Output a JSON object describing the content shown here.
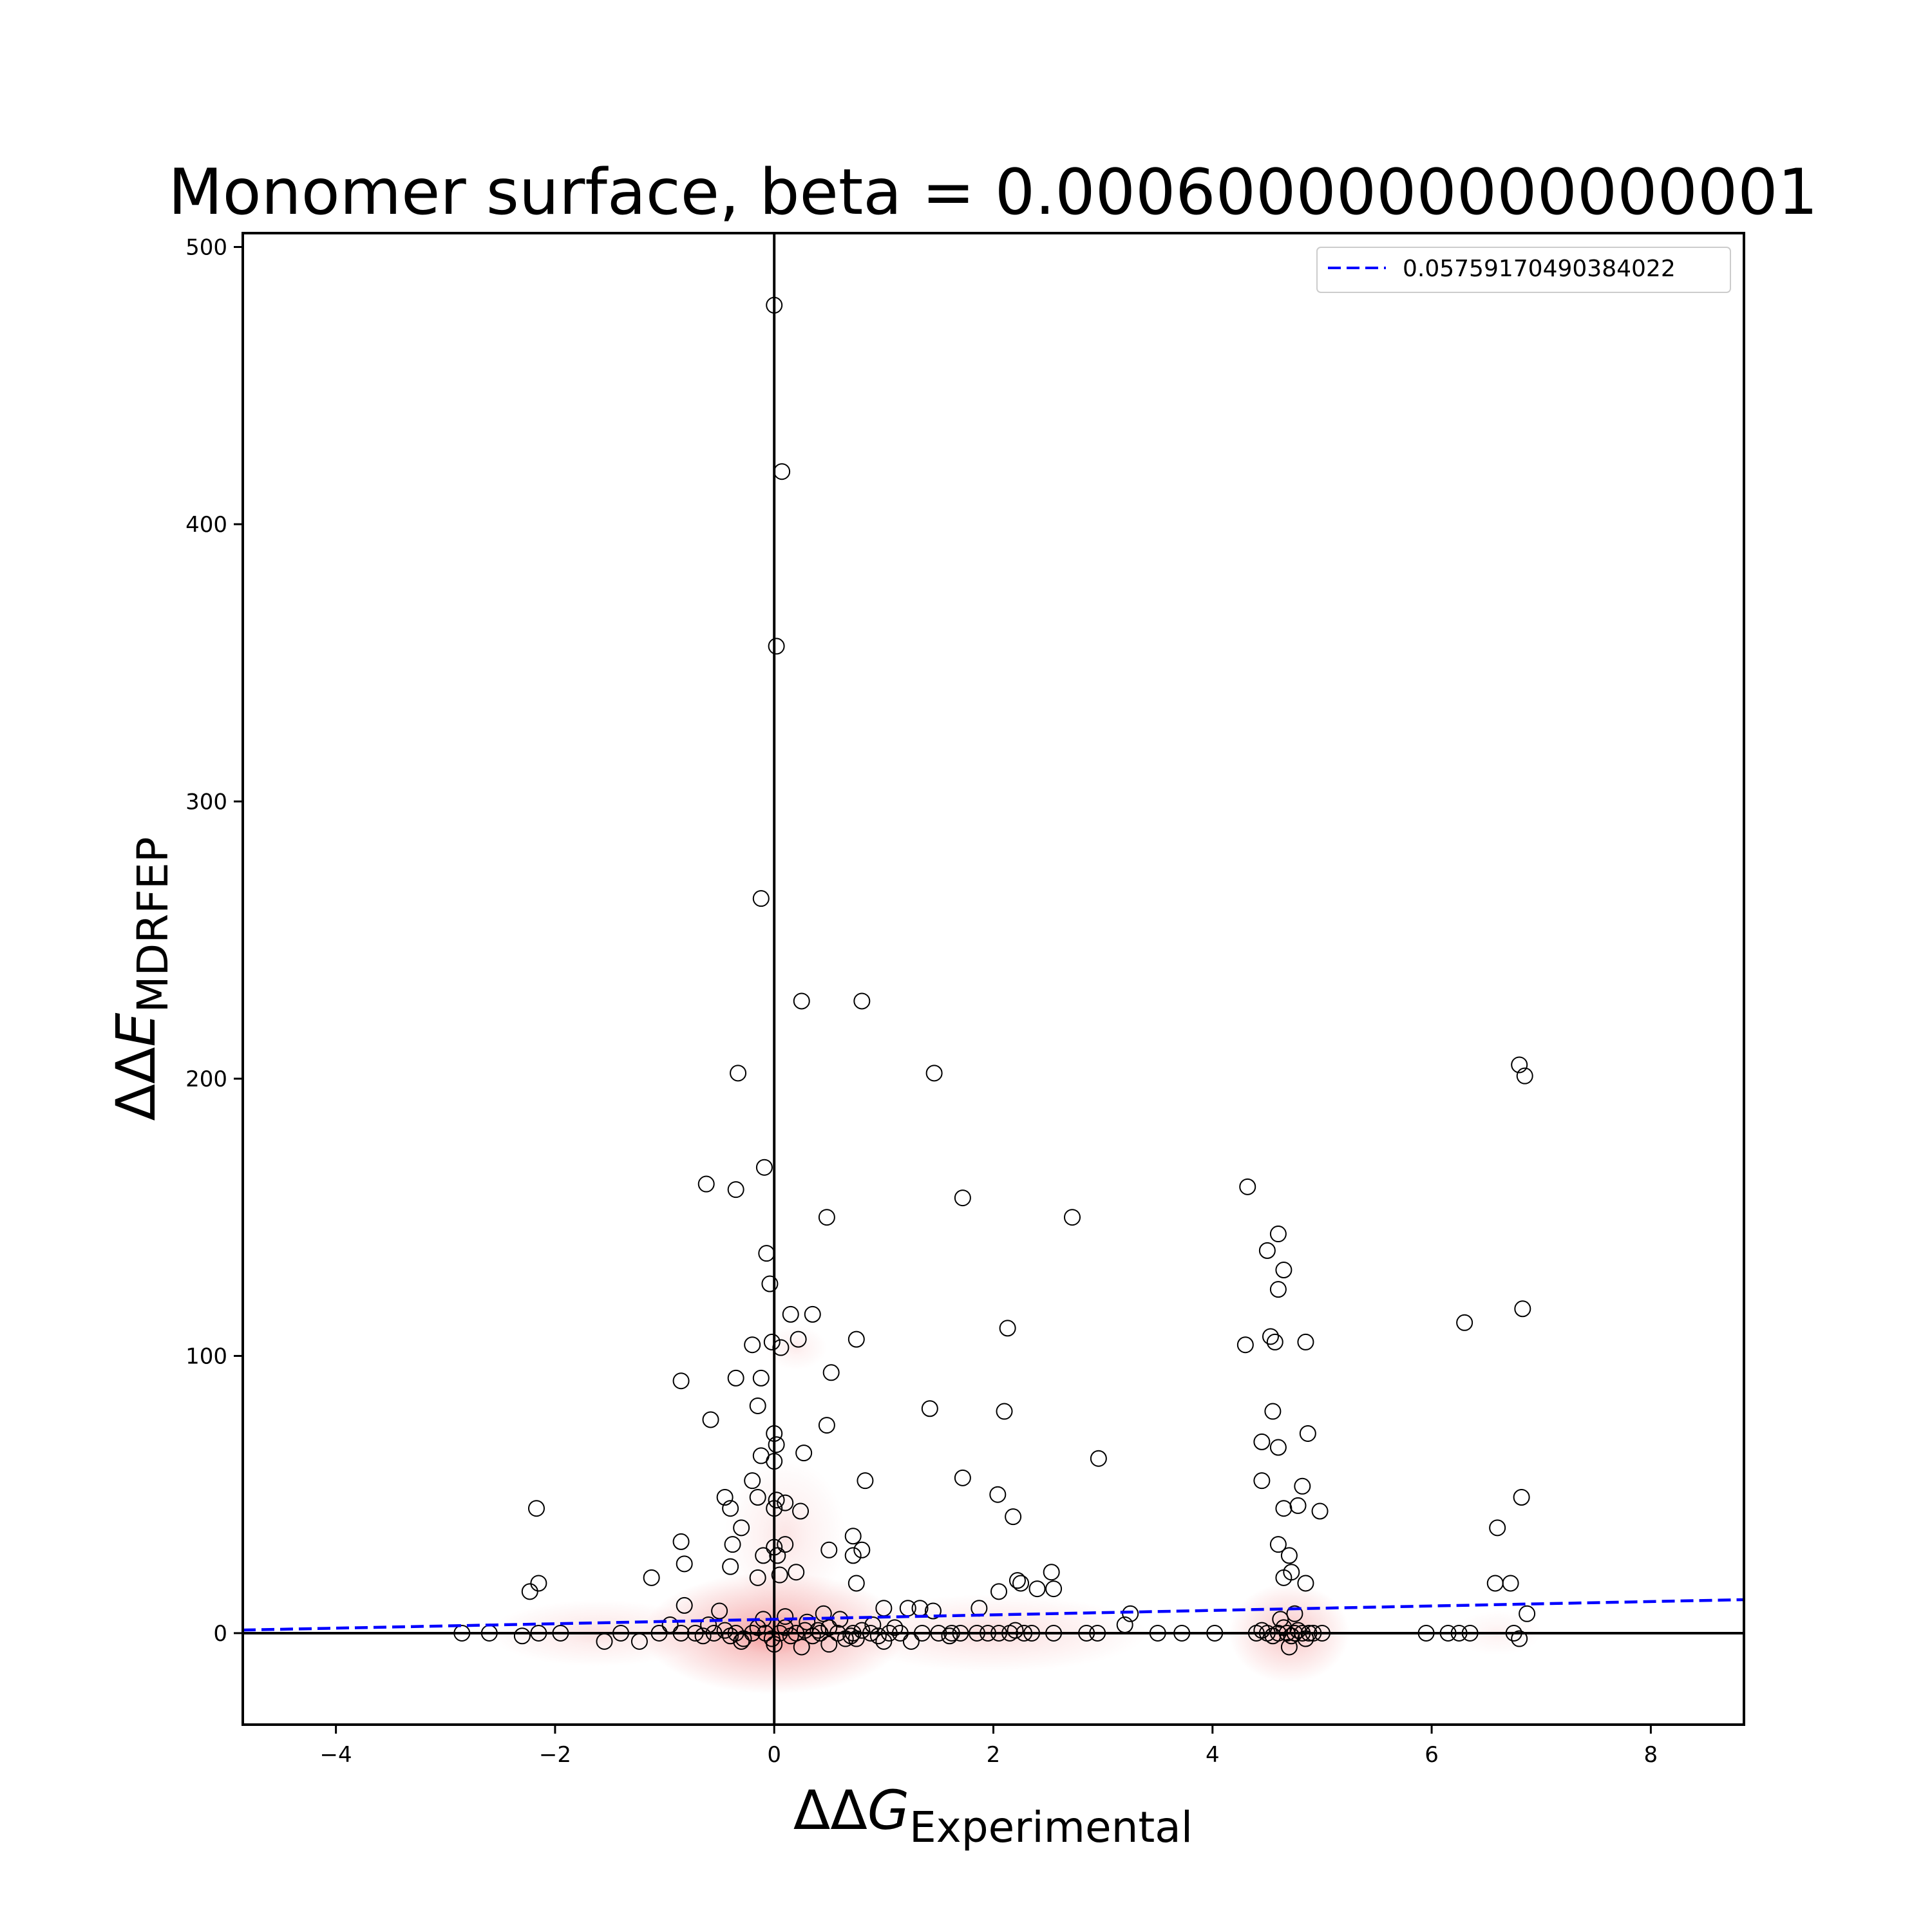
{
  "chart_data": {
    "type": "scatter",
    "title": "Monomer surface, beta = 0.0006000000000000001",
    "xlabel": {
      "main": "ΔΔ",
      "var": "G",
      "sub": "Experimental"
    },
    "ylabel": {
      "main": "ΔΔ",
      "var": "E",
      "sub": "MDRFEP"
    },
    "xlim": [
      -4.85,
      8.85
    ],
    "ylim": [
      -33,
      505
    ],
    "xticks": [
      -4,
      -2,
      0,
      2,
      4,
      6,
      8
    ],
    "xtick_labels": [
      "−4",
      "−2",
      "0",
      "2",
      "4",
      "6",
      "8"
    ],
    "yticks": [
      0,
      100,
      200,
      300,
      400,
      500
    ],
    "ytick_labels": [
      "0",
      "100",
      "200",
      "300",
      "400",
      "500"
    ],
    "reference_lines": {
      "x": 0,
      "y": 0
    },
    "legend": {
      "placement": "top-right",
      "entries": [
        {
          "label": "0.05759170490384022",
          "style": "dashed",
          "color": "#0000ff"
        }
      ]
    },
    "fit_line": {
      "slope": 0.8,
      "intercept": 5.0,
      "color": "#0000ff"
    },
    "density_color": "#f08080",
    "density_blobs": [
      {
        "cx": 0.0,
        "cy": 0,
        "rx": 1.2,
        "ry": 22,
        "w": 1.0
      },
      {
        "cx": 4.7,
        "cy": 0,
        "rx": 0.55,
        "ry": 18,
        "w": 0.65
      },
      {
        "cx": 2.0,
        "cy": 0,
        "rx": 1.4,
        "ry": 14,
        "w": 0.35
      },
      {
        "cx": -1.6,
        "cy": 0,
        "rx": 1.0,
        "ry": 12,
        "w": 0.3
      },
      {
        "cx": 0.1,
        "cy": 35,
        "rx": 0.55,
        "ry": 28,
        "w": 0.25
      },
      {
        "cx": 0.2,
        "cy": 103,
        "rx": 0.28,
        "ry": 8,
        "w": 0.2
      },
      {
        "cx": 6.6,
        "cy": 0,
        "rx": 0.4,
        "ry": 8,
        "w": 0.15
      }
    ],
    "series": [
      {
        "values": [
          [
            0.0,
            479
          ],
          [
            0.07,
            419
          ],
          [
            0.02,
            356
          ],
          [
            -0.12,
            265
          ],
          [
            0.25,
            228
          ],
          [
            0.8,
            228
          ],
          [
            -0.33,
            202
          ],
          [
            1.46,
            202
          ],
          [
            6.8,
            205
          ],
          [
            6.85,
            201
          ],
          [
            -0.09,
            168
          ],
          [
            -0.62,
            162
          ],
          [
            -0.35,
            160
          ],
          [
            1.72,
            157
          ],
          [
            4.32,
            161
          ],
          [
            2.72,
            150
          ],
          [
            0.48,
            150
          ],
          [
            4.6,
            144
          ],
          [
            -0.07,
            137
          ],
          [
            4.5,
            138
          ],
          [
            4.65,
            131
          ],
          [
            -0.04,
            126
          ],
          [
            4.6,
            124
          ],
          [
            0.15,
            115
          ],
          [
            0.35,
            115
          ],
          [
            6.83,
            117
          ],
          [
            6.3,
            112
          ],
          [
            2.13,
            110
          ],
          [
            -0.2,
            104
          ],
          [
            -0.02,
            105
          ],
          [
            0.06,
            103
          ],
          [
            0.22,
            106
          ],
          [
            0.75,
            106
          ],
          [
            4.3,
            104
          ],
          [
            4.53,
            107
          ],
          [
            4.57,
            105
          ],
          [
            4.85,
            105
          ],
          [
            -0.85,
            91
          ],
          [
            -0.35,
            92
          ],
          [
            -0.12,
            92
          ],
          [
            0.52,
            94
          ],
          [
            -0.15,
            82
          ],
          [
            1.42,
            81
          ],
          [
            2.1,
            80
          ],
          [
            4.55,
            80
          ],
          [
            -0.58,
            77
          ],
          [
            0.48,
            75
          ],
          [
            4.87,
            72
          ],
          [
            0.0,
            72
          ],
          [
            0.02,
            68
          ],
          [
            4.45,
            69
          ],
          [
            4.6,
            67
          ],
          [
            0.27,
            65
          ],
          [
            -0.12,
            64
          ],
          [
            0.0,
            62
          ],
          [
            2.96,
            63
          ],
          [
            -0.2,
            55
          ],
          [
            0.83,
            55
          ],
          [
            1.72,
            56
          ],
          [
            4.45,
            55
          ],
          [
            4.82,
            53
          ],
          [
            -0.45,
            49
          ],
          [
            -0.15,
            49
          ],
          [
            0.02,
            48
          ],
          [
            0.1,
            47
          ],
          [
            2.04,
            50
          ],
          [
            6.82,
            49
          ],
          [
            -0.4,
            45
          ],
          [
            0.0,
            45
          ],
          [
            0.24,
            44
          ],
          [
            4.65,
            45
          ],
          [
            4.78,
            46
          ],
          [
            4.98,
            44
          ],
          [
            -2.17,
            45
          ],
          [
            2.18,
            42
          ],
          [
            -0.3,
            38
          ],
          [
            6.6,
            38
          ],
          [
            -0.85,
            33
          ],
          [
            -0.38,
            32
          ],
          [
            0.0,
            31
          ],
          [
            0.03,
            28
          ],
          [
            0.1,
            32
          ],
          [
            0.72,
            35
          ],
          [
            0.8,
            30
          ],
          [
            4.6,
            32
          ],
          [
            4.7,
            28
          ],
          [
            -0.1,
            28
          ],
          [
            0.5,
            30
          ],
          [
            0.72,
            28
          ],
          [
            0.2,
            22
          ],
          [
            -0.4,
            24
          ],
          [
            -0.82,
            25
          ],
          [
            4.72,
            22
          ],
          [
            4.65,
            20
          ],
          [
            2.53,
            22
          ],
          [
            -0.15,
            20
          ],
          [
            0.05,
            21
          ],
          [
            -1.12,
            20
          ],
          [
            0.75,
            18
          ],
          [
            2.22,
            19
          ],
          [
            2.25,
            18
          ],
          [
            2.05,
            15
          ],
          [
            -2.15,
            18
          ],
          [
            -2.23,
            15
          ],
          [
            4.85,
            18
          ],
          [
            6.58,
            18
          ],
          [
            6.72,
            18
          ],
          [
            1.87,
            9
          ],
          [
            2.4,
            16
          ],
          [
            2.55,
            16
          ],
          [
            3.25,
            7
          ],
          [
            6.87,
            7
          ],
          [
            -0.82,
            10
          ],
          [
            -0.95,
            3
          ],
          [
            -0.5,
            8
          ],
          [
            0.45,
            7
          ],
          [
            1.0,
            9
          ],
          [
            1.22,
            9
          ],
          [
            1.33,
            9
          ],
          [
            1.45,
            8
          ],
          [
            3.2,
            3
          ],
          [
            -2.85,
            0
          ],
          [
            -2.6,
            0
          ],
          [
            -2.3,
            -1
          ],
          [
            -2.15,
            0
          ],
          [
            -1.95,
            0
          ],
          [
            -1.55,
            -3
          ],
          [
            -1.4,
            0
          ],
          [
            -1.23,
            -3
          ],
          [
            -1.05,
            0
          ],
          [
            -0.85,
            0
          ],
          [
            -0.72,
            0
          ],
          [
            -0.65,
            -1
          ],
          [
            -0.55,
            0
          ],
          [
            -0.45,
            1
          ],
          [
            -0.35,
            0
          ],
          [
            -0.28,
            -2
          ],
          [
            -0.2,
            0
          ],
          [
            -0.15,
            2
          ],
          [
            -0.08,
            0
          ],
          [
            -0.02,
            -2
          ],
          [
            0.05,
            0
          ],
          [
            0.1,
            2
          ],
          [
            0.15,
            -1
          ],
          [
            0.2,
            0
          ],
          [
            0.28,
            1
          ],
          [
            0.35,
            -1
          ],
          [
            0.42,
            0
          ],
          [
            0.5,
            2
          ],
          [
            0.58,
            0
          ],
          [
            0.65,
            -2
          ],
          [
            0.72,
            0
          ],
          [
            0.8,
            1
          ],
          [
            0.88,
            0
          ],
          [
            0.95,
            -1
          ],
          [
            1.05,
            0
          ],
          [
            1.15,
            0
          ],
          [
            1.25,
            -3
          ],
          [
            1.35,
            0
          ],
          [
            1.5,
            0
          ],
          [
            1.62,
            0
          ],
          [
            1.7,
            0
          ],
          [
            1.85,
            0
          ],
          [
            1.95,
            0
          ],
          [
            2.05,
            0
          ],
          [
            2.15,
            0
          ],
          [
            2.28,
            0
          ],
          [
            2.35,
            0
          ],
          [
            2.55,
            0
          ],
          [
            2.85,
            0
          ],
          [
            2.95,
            0
          ],
          [
            3.5,
            0
          ],
          [
            3.72,
            0
          ],
          [
            4.02,
            0
          ],
          [
            4.4,
            0
          ],
          [
            4.45,
            1
          ],
          [
            4.5,
            0
          ],
          [
            4.55,
            -1
          ],
          [
            4.6,
            0
          ],
          [
            4.65,
            2
          ],
          [
            4.68,
            0
          ],
          [
            4.72,
            -1
          ],
          [
            4.75,
            0
          ],
          [
            4.78,
            1
          ],
          [
            4.82,
            0
          ],
          [
            4.85,
            -2
          ],
          [
            4.88,
            0
          ],
          [
            4.92,
            0
          ],
          [
            5.0,
            0
          ],
          [
            4.7,
            -5
          ],
          [
            4.62,
            5
          ],
          [
            4.75,
            7
          ],
          [
            5.95,
            0
          ],
          [
            6.15,
            0
          ],
          [
            6.25,
            0
          ],
          [
            6.35,
            0
          ],
          [
            6.75,
            0
          ],
          [
            6.8,
            -2
          ],
          [
            -0.3,
            -3
          ],
          [
            0.0,
            -4
          ],
          [
            0.25,
            -5
          ],
          [
            0.5,
            -4
          ],
          [
            0.75,
            -2
          ],
          [
            1.0,
            -3
          ],
          [
            -0.1,
            5
          ],
          [
            0.1,
            6
          ],
          [
            0.3,
            4
          ],
          [
            0.6,
            5
          ],
          [
            0.9,
            3
          ],
          [
            -0.6,
            3
          ],
          [
            -0.4,
            -1
          ],
          [
            0.4,
            1
          ],
          [
            0.7,
            -1
          ],
          [
            1.1,
            2
          ],
          [
            1.6,
            -1
          ],
          [
            2.2,
            1
          ]
        ]
      }
    ]
  }
}
